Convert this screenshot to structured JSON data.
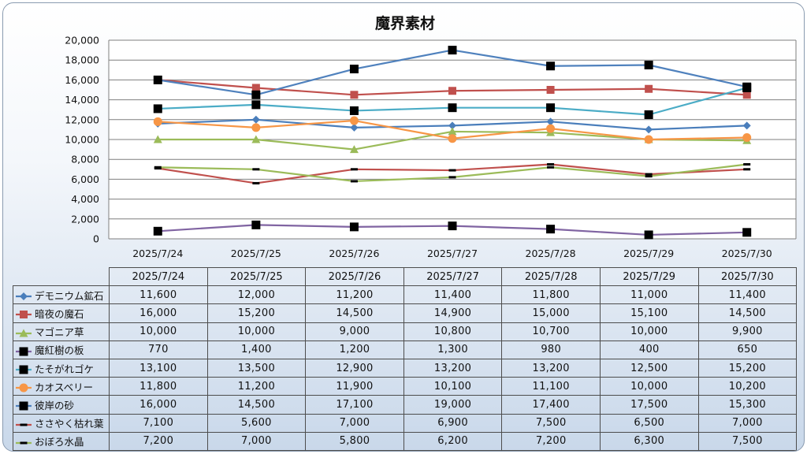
{
  "chart_data": {
    "type": "line",
    "title": "魔界素材",
    "categories": [
      "2025/7/24",
      "2025/7/25",
      "2025/7/26",
      "2025/7/27",
      "2025/7/28",
      "2025/7/29",
      "2025/7/30"
    ],
    "ylim": [
      0,
      20000
    ],
    "yticks": [
      "0",
      "2,000",
      "4,000",
      "6,000",
      "8,000",
      "10,000",
      "12,000",
      "14,000",
      "16,000",
      "18,000",
      "20,000"
    ],
    "grid": true,
    "legend": "data-table",
    "series": [
      {
        "name": "デモニウム鉱石",
        "color": "#4a7ebb",
        "marker": "diamond",
        "values": [
          11600,
          12000,
          11200,
          11400,
          11800,
          11000,
          11400
        ],
        "labels": [
          "11,600",
          "12,000",
          "11,200",
          "11,400",
          "11,800",
          "11,000",
          "11,400"
        ]
      },
      {
        "name": "暗夜の魔石",
        "color": "#c0504d",
        "marker": "square",
        "values": [
          16000,
          15200,
          14500,
          14900,
          15000,
          15100,
          14500
        ],
        "labels": [
          "16,000",
          "15,200",
          "14,500",
          "14,900",
          "15,000",
          "15,100",
          "14,500"
        ]
      },
      {
        "name": "マゴニア草",
        "color": "#9bbb59",
        "marker": "triangle",
        "values": [
          10000,
          10000,
          9000,
          10800,
          10700,
          10000,
          9900
        ],
        "labels": [
          "10,000",
          "10,000",
          "9,000",
          "10,800",
          "10,700",
          "10,000",
          "9,900"
        ]
      },
      {
        "name": "魔紅樹の板",
        "color": "#8064a2",
        "marker": "bigsquare",
        "values": [
          770,
          1400,
          1200,
          1300,
          980,
          400,
          650
        ],
        "labels": [
          "770",
          "1,400",
          "1,200",
          "1,300",
          "980",
          "400",
          "650"
        ]
      },
      {
        "name": "たそがれゴケ",
        "color": "#4bacc6",
        "marker": "bigsquare",
        "values": [
          13100,
          13500,
          12900,
          13200,
          13200,
          12500,
          15200
        ],
        "labels": [
          "13,100",
          "13,500",
          "12,900",
          "13,200",
          "13,200",
          "12,500",
          "15,200"
        ]
      },
      {
        "name": "カオスベリー",
        "color": "#f79646",
        "marker": "circle",
        "values": [
          11800,
          11200,
          11900,
          10100,
          11100,
          10000,
          10200
        ],
        "labels": [
          "11,800",
          "11,200",
          "11,900",
          "10,100",
          "11,100",
          "10,000",
          "10,200"
        ]
      },
      {
        "name": "彼岸の砂",
        "color": "#4f81bd",
        "marker": "bigsquare",
        "values": [
          16000,
          14500,
          17100,
          19000,
          17400,
          17500,
          15300
        ],
        "labels": [
          "16,000",
          "14,500",
          "17,100",
          "19,000",
          "17,400",
          "17,500",
          "15,300"
        ]
      },
      {
        "name": "ささやく枯れ葉",
        "color": "#c0504d",
        "marker": "dash",
        "values": [
          7100,
          5600,
          7000,
          6900,
          7500,
          6500,
          7000
        ],
        "labels": [
          "7,100",
          "5,600",
          "7,000",
          "6,900",
          "7,500",
          "6,500",
          "7,000"
        ]
      },
      {
        "name": "おぼろ水晶",
        "color": "#9bbb59",
        "marker": "dash",
        "values": [
          7200,
          7000,
          5800,
          6200,
          7200,
          6300,
          7500
        ],
        "labels": [
          "7,200",
          "7,000",
          "5,800",
          "6,200",
          "7,200",
          "6,300",
          "7,500"
        ]
      }
    ]
  }
}
